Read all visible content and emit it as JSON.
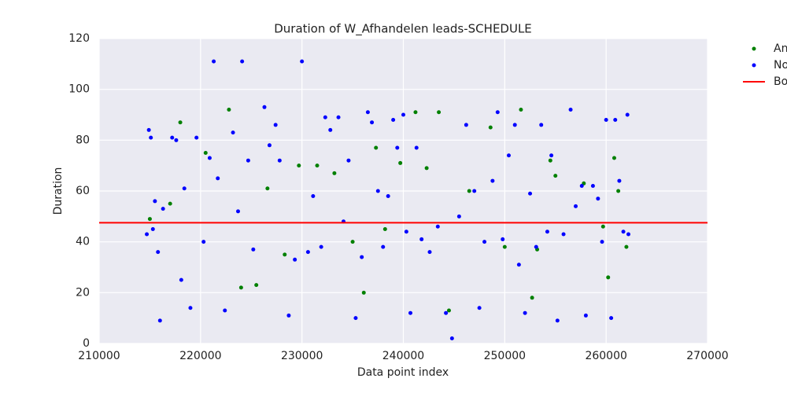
{
  "chart_data": {
    "type": "scatter",
    "title": "Duration of W_Afhandelen leads-SCHEDULE",
    "x_label": "Data point index",
    "y_label": "Duration",
    "xlim": [
      210000,
      270000
    ],
    "xticks": [
      210000,
      220000,
      230000,
      240000,
      250000,
      260000,
      270000
    ],
    "ylim": [
      0,
      120
    ],
    "yticks": [
      0,
      20,
      40,
      60,
      80,
      100,
      120
    ],
    "grid": true,
    "legend": "outside-right",
    "series": [
      {
        "name": "An",
        "color": "#008000",
        "x": [
          215000,
          217000,
          218000,
          220500,
          222800,
          224000,
          225500,
          226600,
          228300,
          229700,
          231500,
          233200,
          235000,
          236100,
          237300,
          238200,
          239700,
          241200,
          242300,
          243500,
          244500,
          246500,
          248600,
          250000,
          251600,
          252700,
          253200,
          254500,
          255000,
          257800,
          259700,
          260200,
          260800,
          261200,
          262000
        ],
        "values": [
          49,
          55,
          87,
          75,
          92,
          22,
          23,
          61,
          35,
          70,
          70,
          67,
          40,
          20,
          77,
          45,
          71,
          91,
          69,
          91,
          13,
          60,
          85,
          38,
          92,
          18,
          37,
          72,
          66,
          63,
          46,
          26,
          73,
          60,
          38
        ]
      },
      {
        "name": "No",
        "color": "#0000ff",
        "x": [
          214700,
          214900,
          215100,
          215300,
          215500,
          215800,
          216000,
          216300,
          217200,
          217600,
          218100,
          218400,
          219000,
          219600,
          220300,
          220900,
          221300,
          221700,
          222400,
          223200,
          223700,
          224100,
          224700,
          225200,
          226300,
          226800,
          227400,
          227800,
          228700,
          229300,
          230000,
          230600,
          231100,
          231900,
          232300,
          232800,
          233600,
          234100,
          234600,
          235300,
          235900,
          236500,
          236900,
          237500,
          238000,
          238500,
          239000,
          239400,
          240000,
          240300,
          240700,
          241300,
          241800,
          242600,
          243400,
          244200,
          244800,
          245500,
          246200,
          247000,
          247500,
          248000,
          248800,
          249300,
          249800,
          250400,
          251000,
          251400,
          252000,
          252500,
          253100,
          253600,
          254200,
          254600,
          255200,
          255800,
          256500,
          257000,
          257600,
          258000,
          258700,
          259200,
          259600,
          260000,
          260500,
          260900,
          261300,
          261700,
          262100,
          262200
        ],
        "values": [
          43,
          84,
          81,
          45,
          56,
          36,
          9,
          53,
          81,
          80,
          25,
          61,
          14,
          81,
          40,
          73,
          111,
          65,
          13,
          83,
          52,
          111,
          72,
          37,
          93,
          78,
          86,
          72,
          11,
          33,
          111,
          36,
          58,
          38,
          89,
          84,
          89,
          48,
          72,
          10,
          34,
          91,
          87,
          60,
          38,
          58,
          88,
          77,
          90,
          44,
          12,
          77,
          41,
          36,
          46,
          12,
          2,
          50,
          86,
          60,
          14,
          40,
          64,
          91,
          41,
          74,
          86,
          31,
          12,
          59,
          38,
          86,
          44,
          74,
          9,
          43,
          92,
          54,
          62,
          11,
          62,
          57,
          40,
          88,
          10,
          88,
          64,
          44,
          90,
          43
        ]
      }
    ],
    "threshold": {
      "name": "Bo",
      "color": "#ff0000",
      "value": 47.5
    }
  }
}
